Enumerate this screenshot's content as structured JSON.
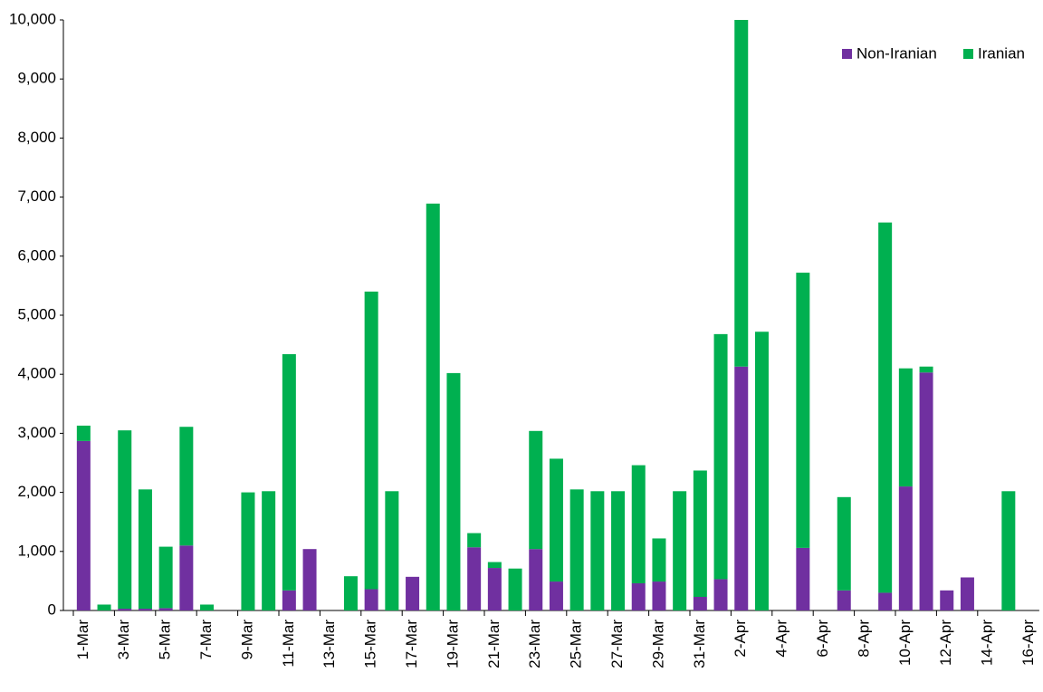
{
  "chart_data": {
    "type": "stacked_bar",
    "categories": [
      "1-Mar",
      null,
      "3-Mar",
      null,
      "5-Mar",
      null,
      "7-Mar",
      null,
      "9-Mar",
      null,
      "11-Mar",
      null,
      "13-Mar",
      null,
      "15-Mar",
      null,
      "17-Mar",
      null,
      "19-Mar",
      null,
      "21-Mar",
      null,
      "23-Mar",
      null,
      "25-Mar",
      null,
      "27-Mar",
      null,
      "29-Mar",
      null,
      "31-Mar",
      null,
      "2-Apr",
      null,
      "4-Apr",
      null,
      "6-Apr",
      null,
      "8-Apr",
      null,
      "10-Apr",
      null,
      "12-Apr",
      null,
      "14-Apr",
      null,
      "16-Apr"
    ],
    "series": [
      {
        "name": "Non-Iranian",
        "color": "#7030a0",
        "values": [
          2870,
          0,
          30,
          30,
          40,
          1100,
          0,
          0,
          0,
          0,
          340,
          1040,
          0,
          0,
          360,
          0,
          570,
          0,
          0,
          1070,
          720,
          0,
          1040,
          490,
          0,
          0,
          0,
          460,
          490,
          0,
          230,
          530,
          4130,
          0,
          0,
          1060,
          0,
          340,
          0,
          300,
          2100,
          4030,
          340,
          560,
          0,
          0,
          0
        ]
      },
      {
        "name": "Iranian",
        "color": "#00b050",
        "values": [
          260,
          100,
          3020,
          2020,
          1040,
          2010,
          100,
          0,
          2000,
          2020,
          4000,
          0,
          0,
          580,
          5040,
          2020,
          0,
          6890,
          4020,
          240,
          100,
          710,
          2000,
          2080,
          2050,
          2020,
          2020,
          2000,
          730,
          2020,
          2140,
          4150,
          5870,
          4720,
          0,
          4660,
          0,
          1580,
          0,
          6270,
          2000,
          100,
          0,
          0,
          0,
          2020,
          0
        ]
      }
    ],
    "ylim": [
      0,
      10000
    ],
    "yticks": [
      0,
      {
        "value": 1000,
        "label": "1,000"
      },
      {
        "value": 2000,
        "label": "2,000"
      },
      {
        "value": 3000,
        "label": "3,000"
      },
      {
        "value": 4000,
        "label": "4,000"
      },
      {
        "value": 5000,
        "label": "5,000"
      },
      {
        "value": 6000,
        "label": "6,000"
      },
      {
        "value": 7000,
        "label": "7,000"
      },
      {
        "value": 8000,
        "label": "8,000"
      },
      {
        "value": 9000,
        "label": "9,000"
      },
      {
        "value": 10000,
        "label": "10,000"
      }
    ],
    "legend": "top-right"
  }
}
